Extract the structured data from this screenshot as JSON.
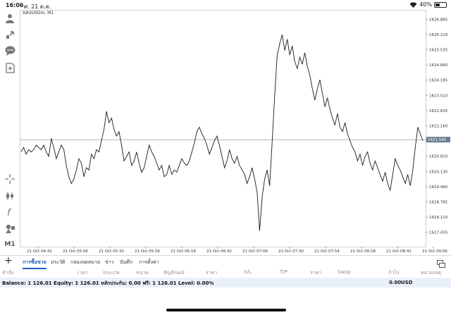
{
  "status": {
    "time": "16:06",
    "date": "ศ. 21 ต.ค.",
    "battery": "40%",
    "battery_level": 0.4
  },
  "sidebar": {
    "icons": [
      "user-icon",
      "deposit-icon",
      "chat-icon",
      "add-document-icon",
      "crosshair-icon",
      "candlestick-icon",
      "function-icon",
      "objects-icon"
    ],
    "timeframe": "M1"
  },
  "chart_title": "XAUUSDm, M1",
  "chart_data": {
    "type": "line",
    "title": "XAUUSDm, M1",
    "ylim": [
      1616.8,
      1627.3
    ],
    "y_ticks": [
      "1626.885",
      "1626.210",
      "1625.535",
      "1624.860",
      "1624.185",
      "1623.510",
      "1622.835",
      "1622.160",
      "1621.485",
      "1620.810",
      "1620.135",
      "1619.460",
      "1618.785",
      "1618.110",
      "1617.435"
    ],
    "y_tick_values": [
      1626.885,
      1626.21,
      1625.535,
      1624.86,
      1624.185,
      1623.51,
      1622.835,
      1622.16,
      1621.485,
      1620.81,
      1620.135,
      1619.46,
      1618.785,
      1618.11,
      1617.435
    ],
    "x_labels": [
      "21 Oct 04:42",
      "21 Oct 05:06",
      "21 Oct 05:30",
      "21 Oct 05:54",
      "21 Oct 06:18",
      "21 Oct 06:42",
      "21 Oct 07:06",
      "21 Oct 07:30",
      "21 Oct 07:54",
      "21 Oct 08:18",
      "21 Oct 08:42",
      "21 Oct 09:06"
    ],
    "current_price": "1621.545",
    "current_price_value": 1621.545,
    "series": [
      {
        "values": [
          1621.0,
          1621.2,
          1620.9,
          1621.1,
          1621.0,
          1621.1,
          1621.3,
          1621.2,
          1621.1,
          1621.3,
          1621.0,
          1620.8,
          1621.6,
          1621.2,
          1620.7,
          1621.0,
          1621.3,
          1621.1,
          1620.4,
          1619.9,
          1619.6,
          1619.8,
          1620.2,
          1620.7,
          1620.5,
          1619.9,
          1620.3,
          1620.2,
          1620.9,
          1620.7,
          1621.1,
          1621.0,
          1621.5,
          1622.0,
          1622.8,
          1622.3,
          1622.5,
          1622.0,
          1621.7,
          1621.9,
          1621.3,
          1620.6,
          1620.8,
          1621.0,
          1620.4,
          1620.6,
          1621.0,
          1620.5,
          1620.1,
          1620.3,
          1620.8,
          1621.3,
          1621.0,
          1620.8,
          1620.5,
          1620.2,
          1620.4,
          1619.9,
          1620.0,
          1620.4,
          1620.0,
          1620.2,
          1620.1,
          1620.4,
          1620.7,
          1620.5,
          1620.4,
          1620.6,
          1621.0,
          1621.4,
          1621.9,
          1622.1,
          1621.8,
          1621.6,
          1621.3,
          1620.9,
          1621.2,
          1621.5,
          1621.7,
          1621.3,
          1620.8,
          1620.3,
          1620.6,
          1621.1,
          1620.7,
          1620.5,
          1620.8,
          1620.4,
          1620.2,
          1620.0,
          1619.6,
          1619.9,
          1620.3,
          1619.8,
          1619.2,
          1617.5,
          1619.0,
          1619.8,
          1620.2,
          1619.5,
          1621.5,
          1623.5,
          1625.3,
          1625.8,
          1626.2,
          1625.5,
          1626.0,
          1625.3,
          1625.7,
          1625.0,
          1624.7,
          1625.2,
          1624.9,
          1625.4,
          1624.8,
          1624.4,
          1623.8,
          1623.3,
          1623.8,
          1624.2,
          1623.6,
          1623.0,
          1623.4,
          1622.9,
          1622.5,
          1622.2,
          1622.7,
          1622.1,
          1621.9,
          1622.3,
          1621.8,
          1621.5,
          1621.2,
          1621.0,
          1620.6,
          1620.9,
          1620.4,
          1620.8,
          1621.0,
          1620.5,
          1620.2,
          1620.6,
          1620.3,
          1620.0,
          1619.7,
          1620.1,
          1619.6,
          1619.3,
          1620.0,
          1620.7,
          1620.4,
          1620.2,
          1619.9,
          1619.6,
          1620.0,
          1619.5,
          1620.2,
          1621.2,
          1622.1,
          1621.8,
          1621.5
        ]
      }
    ]
  },
  "tabs": [
    "การซื้อขาย",
    "ประวัติ",
    "กล่องจดหมาย",
    "ข่าว",
    "บันทึก",
    "การตั้งค่า"
  ],
  "columns": [
    "คำสั่ง",
    "เวลา",
    "ประเภท",
    "ขนาด",
    "สัญลักษณ์",
    "ราคา",
    "S/L",
    "T/P",
    "ราคา",
    "Swap",
    "กำไร",
    "หมายเหตุ"
  ],
  "balance": {
    "text": "Balance: 1 126.01 Equity: 1 126.01 หลักประกัน: 0.00 ฟรี: 1 126.01 Level: 0.00%",
    "profit": "0.00",
    "currency": "USD"
  },
  "colors": {
    "accent": "#1e5fc2",
    "line": "#1a1a1a",
    "grid": "#e6e6e6",
    "balance_bg": "#eaf0fa",
    "price_tag": "#6b7c93"
  }
}
